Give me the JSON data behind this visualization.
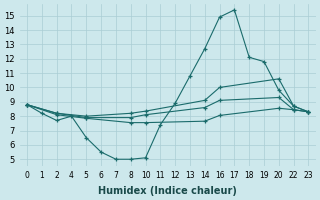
{
  "xlabel": "Humidex (Indice chaleur)",
  "bg_color": "#cde8ec",
  "grid_color": "#aacdd4",
  "line_color": "#1a6b6b",
  "yticks": [
    5,
    6,
    7,
    8,
    9,
    10,
    11,
    12,
    13,
    14,
    15
  ],
  "xtick_labels": [
    "0",
    "1",
    "2",
    "4",
    "5",
    "6",
    "7",
    "8",
    "10",
    "11",
    "12",
    "13",
    "14",
    "16",
    "17",
    "18",
    "19",
    "20",
    "22",
    "23"
  ],
  "ylim": [
    4.5,
    15.8
  ],
  "line1_y": [
    8.8,
    8.2,
    7.7,
    8.0,
    6.5,
    5.5,
    5.0,
    5.0,
    5.1,
    7.4,
    8.9,
    10.8,
    12.7,
    14.9,
    15.4,
    12.1,
    11.8,
    9.8,
    8.7,
    8.3
  ],
  "line2_xi": [
    0,
    2,
    4,
    7,
    8,
    12,
    13,
    17,
    18,
    19
  ],
  "line2_y": [
    8.8,
    8.2,
    8.0,
    8.2,
    8.35,
    9.1,
    10.0,
    10.6,
    8.7,
    8.3
  ],
  "line3_xi": [
    0,
    2,
    4,
    7,
    8,
    12,
    13,
    17,
    18,
    19
  ],
  "line3_y": [
    8.8,
    8.2,
    7.9,
    7.9,
    8.1,
    8.6,
    9.1,
    9.3,
    8.45,
    8.3
  ],
  "line4_xi": [
    0,
    2,
    4,
    7,
    8,
    12,
    13,
    17,
    18,
    19
  ],
  "line4_y": [
    8.8,
    8.1,
    7.85,
    7.55,
    7.55,
    7.65,
    8.05,
    8.55,
    8.45,
    8.3
  ]
}
